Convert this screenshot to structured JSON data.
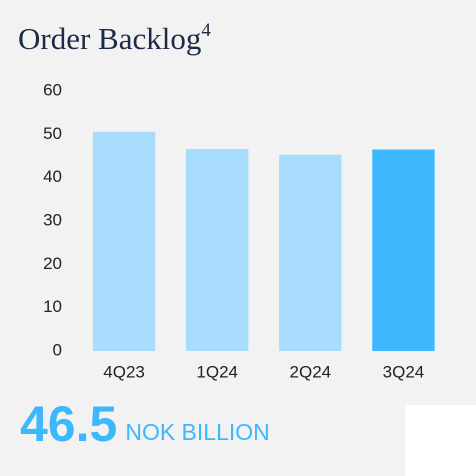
{
  "chart_data": {
    "type": "bar",
    "title": "Order Backlog",
    "title_superscript": "4",
    "categories": [
      "4Q23",
      "1Q24",
      "2Q24",
      "3Q24"
    ],
    "values": [
      50.6,
      46.6,
      45.3,
      46.5
    ],
    "colors": [
      "#a8dcfc",
      "#a8dcfc",
      "#a8dcfc",
      "#3db8fc"
    ],
    "ylim": [
      0,
      60
    ],
    "yticks": [
      0,
      10,
      20,
      30,
      40,
      50,
      60
    ],
    "grid": false,
    "unit": "NOK BILLION"
  }
}
